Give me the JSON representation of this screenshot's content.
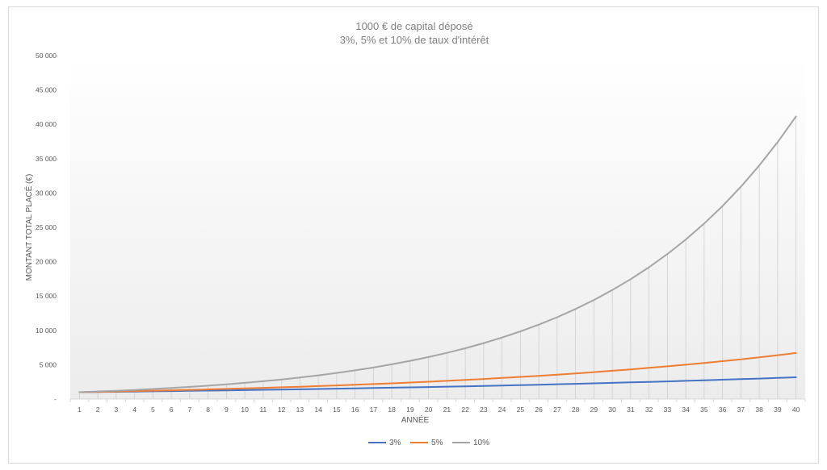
{
  "chart_data": {
    "type": "line",
    "title": "1000 € de capital déposé",
    "subtitle": "3%, 5% et 10% de taux d'intérêt",
    "xlabel": "ANNÉE",
    "ylabel": "MONTANT  TOTAL  PLACÉ (€)",
    "ylim": [
      0,
      50000
    ],
    "y_ticks": [
      {
        "value": 0,
        "label": "-"
      },
      {
        "value": 5000,
        "label": "5 000"
      },
      {
        "value": 10000,
        "label": "10 000"
      },
      {
        "value": 15000,
        "label": "15 000"
      },
      {
        "value": 20000,
        "label": "20 000"
      },
      {
        "value": 25000,
        "label": "25 000"
      },
      {
        "value": 30000,
        "label": "30 000"
      },
      {
        "value": 35000,
        "label": "35 000"
      },
      {
        "value": 40000,
        "label": "40 000"
      },
      {
        "value": 45000,
        "label": "45 000"
      },
      {
        "value": 50000,
        "label": "50 000"
      }
    ],
    "x": [
      1,
      2,
      3,
      4,
      5,
      6,
      7,
      8,
      9,
      10,
      11,
      12,
      13,
      14,
      15,
      16,
      17,
      18,
      19,
      20,
      21,
      22,
      23,
      24,
      25,
      26,
      27,
      28,
      29,
      30,
      31,
      32,
      33,
      34,
      35,
      36,
      37,
      38,
      39,
      40
    ],
    "drop_lines": true,
    "legend_position": "bottom",
    "series": [
      {
        "name": "3%",
        "color": "#4472c4",
        "values": [
          1000,
          1030,
          1061,
          1093,
          1126,
          1159,
          1194,
          1230,
          1267,
          1305,
          1344,
          1384,
          1426,
          1469,
          1513,
          1558,
          1605,
          1653,
          1702,
          1754,
          1806,
          1860,
          1916,
          1974,
          2033,
          2094,
          2157,
          2221,
          2288,
          2357,
          2427,
          2500,
          2575,
          2652,
          2732,
          2814,
          2898,
          2985,
          3075,
          3167
        ]
      },
      {
        "name": "5%",
        "color": "#ed7d31",
        "values": [
          1000,
          1050,
          1103,
          1158,
          1216,
          1276,
          1340,
          1407,
          1477,
          1551,
          1629,
          1710,
          1796,
          1886,
          1980,
          2079,
          2183,
          2292,
          2407,
          2527,
          2653,
          2786,
          2925,
          3072,
          3225,
          3386,
          3556,
          3733,
          3920,
          4116,
          4322,
          4538,
          4765,
          5003,
          5253,
          5516,
          5792,
          6081,
          6385,
          6705
        ]
      },
      {
        "name": "10%",
        "color": "#a5a5a5",
        "values": [
          1000,
          1100,
          1210,
          1331,
          1464,
          1611,
          1772,
          1949,
          2144,
          2358,
          2594,
          2853,
          3138,
          3452,
          3797,
          4177,
          4595,
          5054,
          5560,
          6116,
          6727,
          7400,
          8140,
          8954,
          9850,
          10835,
          11918,
          13110,
          14421,
          15863,
          17449,
          19194,
          21114,
          23225,
          25548,
          28102,
          30913,
          34004,
          37404,
          41145
        ]
      }
    ]
  }
}
